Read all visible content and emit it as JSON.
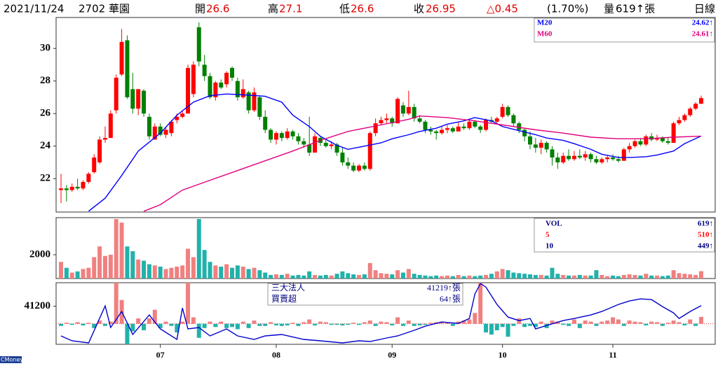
{
  "header": {
    "date": "2021/11/24",
    "stock": "2702 華園",
    "open_label": "開",
    "open": "26.6",
    "high_label": "高",
    "high": "27.1",
    "low_label": "低",
    "low": "26.6",
    "close_label": "收",
    "close": "26.95",
    "change": "△0.45",
    "change_pct": "(1.70%)",
    "volume_label": "量",
    "volume": "619↑張",
    "period": "日線"
  },
  "brand": "CMoney",
  "chart_data": [
    {
      "type": "candlestick",
      "up_color": "#ff0000",
      "down_color": "#008000",
      "ylim": [
        19.95,
        31.9
      ],
      "yticks": [
        22,
        24,
        26,
        28,
        30
      ],
      "xticks": [
        {
          "value": 18,
          "label": "07"
        },
        {
          "value": 39,
          "label": "08"
        },
        {
          "value": 60,
          "label": "09"
        },
        {
          "value": 80,
          "label": "10"
        },
        {
          "value": 100,
          "label": "11"
        }
      ],
      "ohlc": [
        [
          21.3,
          22.3,
          20.5,
          21.4
        ],
        [
          21.4,
          21.6,
          20.6,
          21.3
        ],
        [
          21.3,
          21.7,
          21.2,
          21.5
        ],
        [
          21.5,
          22.0,
          21.3,
          21.4
        ],
        [
          21.4,
          21.9,
          21.3,
          21.8
        ],
        [
          21.8,
          22.4,
          21.7,
          22.3
        ],
        [
          22.4,
          23.5,
          22.3,
          23.3
        ],
        [
          23.0,
          24.6,
          22.9,
          24.4
        ],
        [
          24.4,
          25.2,
          24.2,
          24.5
        ],
        [
          24.5,
          26.2,
          24.5,
          26.0
        ],
        [
          26.2,
          28.4,
          26.0,
          28.2
        ],
        [
          28.4,
          31.2,
          28.3,
          30.4
        ],
        [
          30.5,
          30.8,
          26.9,
          27.0
        ],
        [
          27.5,
          28.5,
          26.0,
          26.3
        ],
        [
          26.3,
          27.5,
          25.9,
          27.5
        ],
        [
          27.4,
          27.5,
          25.8,
          26.0
        ],
        [
          25.8,
          26.0,
          24.4,
          24.6
        ],
        [
          24.4,
          25.4,
          24.4,
          25.2
        ],
        [
          25.2,
          25.4,
          24.6,
          24.7
        ],
        [
          24.7,
          25.2,
          24.5,
          25.0
        ],
        [
          24.8,
          25.6,
          24.6,
          25.5
        ],
        [
          25.6,
          26.0,
          25.4,
          25.8
        ],
        [
          25.8,
          26.2,
          25.7,
          26.0
        ],
        [
          26.0,
          29.0,
          26.0,
          28.8
        ],
        [
          27.2,
          29.2,
          27.0,
          29.0
        ],
        [
          31.3,
          31.6,
          28.9,
          29.2
        ],
        [
          29.0,
          29.6,
          28.0,
          28.3
        ],
        [
          28.3,
          28.5,
          26.9,
          27.0
        ],
        [
          27.0,
          28.0,
          26.8,
          27.9
        ],
        [
          27.9,
          28.1,
          27.5,
          27.6
        ],
        [
          27.8,
          28.6,
          27.6,
          28.5
        ],
        [
          28.8,
          28.9,
          28.0,
          28.2
        ],
        [
          28.0,
          28.2,
          26.8,
          27.0
        ],
        [
          27.0,
          28.1,
          26.9,
          27.5
        ],
        [
          27.3,
          27.4,
          26.0,
          26.2
        ],
        [
          26.2,
          27.6,
          26.1,
          27.3
        ],
        [
          27.0,
          27.1,
          25.6,
          25.8
        ],
        [
          25.8,
          26.2,
          24.8,
          25.0
        ],
        [
          25.0,
          25.1,
          24.2,
          24.4
        ],
        [
          24.4,
          24.9,
          24.1,
          24.8
        ],
        [
          24.8,
          24.9,
          24.3,
          24.5
        ],
        [
          24.5,
          25.1,
          24.4,
          24.9
        ],
        [
          24.9,
          25.0,
          24.4,
          24.6
        ],
        [
          24.6,
          24.8,
          24.1,
          24.3
        ],
        [
          24.3,
          24.5,
          23.9,
          24.1
        ],
        [
          24.1,
          25.8,
          23.4,
          23.6
        ],
        [
          23.6,
          24.8,
          23.6,
          24.6
        ],
        [
          24.5,
          24.6,
          24.0,
          24.2
        ],
        [
          24.2,
          24.4,
          23.9,
          24.0
        ],
        [
          24.0,
          24.3,
          23.8,
          24.1
        ],
        [
          24.1,
          24.2,
          23.4,
          23.6
        ],
        [
          23.6,
          23.9,
          22.8,
          23.0
        ],
        [
          23.0,
          23.3,
          22.6,
          22.8
        ],
        [
          22.8,
          23.0,
          22.4,
          22.5
        ],
        [
          22.5,
          22.9,
          22.4,
          22.8
        ],
        [
          22.8,
          23.0,
          22.5,
          22.6
        ],
        [
          22.6,
          24.9,
          22.5,
          24.8
        ],
        [
          24.8,
          25.7,
          24.6,
          25.4
        ],
        [
          25.4,
          25.8,
          25.3,
          25.6
        ],
        [
          25.6,
          26.0,
          25.4,
          25.7
        ],
        [
          25.7,
          25.8,
          25.2,
          25.4
        ],
        [
          25.4,
          27.0,
          25.4,
          26.9
        ],
        [
          26.5,
          26.7,
          25.8,
          26.0
        ],
        [
          26.0,
          27.4,
          25.9,
          26.4
        ],
        [
          26.4,
          26.6,
          25.5,
          25.7
        ],
        [
          25.7,
          25.9,
          25.4,
          25.5
        ],
        [
          25.5,
          25.6,
          24.8,
          25.0
        ],
        [
          25.0,
          25.2,
          24.7,
          24.9
        ],
        [
          24.9,
          25.0,
          24.4,
          24.8
        ],
        [
          24.8,
          25.2,
          24.7,
          25.0
        ],
        [
          25.0,
          25.3,
          24.8,
          25.1
        ],
        [
          25.1,
          25.2,
          24.8,
          24.9
        ],
        [
          24.9,
          25.5,
          24.9,
          25.2
        ],
        [
          25.2,
          25.4,
          25.0,
          25.1
        ],
        [
          25.1,
          25.6,
          25.0,
          25.5
        ],
        [
          25.5,
          25.6,
          25.1,
          25.2
        ],
        [
          25.2,
          25.3,
          24.8,
          25.0
        ],
        [
          25.0,
          25.7,
          24.9,
          25.6
        ],
        [
          25.6,
          25.8,
          25.4,
          25.5
        ],
        [
          25.5,
          25.8,
          25.4,
          25.7
        ],
        [
          25.8,
          26.6,
          25.7,
          26.4
        ],
        [
          26.4,
          26.5,
          25.8,
          25.9
        ],
        [
          25.9,
          26.0,
          25.2,
          25.4
        ],
        [
          25.4,
          25.5,
          24.8,
          25.0
        ],
        [
          25.0,
          25.1,
          24.3,
          24.6
        ],
        [
          24.6,
          24.9,
          23.8,
          24.1
        ],
        [
          24.1,
          24.5,
          23.6,
          23.9
        ],
        [
          23.9,
          24.4,
          23.5,
          24.2
        ],
        [
          24.2,
          24.3,
          23.6,
          23.8
        ],
        [
          23.8,
          24.0,
          22.8,
          23.3
        ],
        [
          23.3,
          23.6,
          22.6,
          23.0
        ],
        [
          23.0,
          23.6,
          22.9,
          23.4
        ],
        [
          23.4,
          23.8,
          23.1,
          23.2
        ],
        [
          23.2,
          23.7,
          23.1,
          23.4
        ],
        [
          23.4,
          23.8,
          23.2,
          23.3
        ],
        [
          23.3,
          23.7,
          23.1,
          23.5
        ],
        [
          23.5,
          23.6,
          23.0,
          23.2
        ],
        [
          23.2,
          23.4,
          22.9,
          23.0
        ],
        [
          23.0,
          23.3,
          22.9,
          23.2
        ],
        [
          23.2,
          23.4,
          23.0,
          23.3
        ],
        [
          23.3,
          23.5,
          23.1,
          23.2
        ],
        [
          23.2,
          23.4,
          23.0,
          23.1
        ],
        [
          23.1,
          23.9,
          23.1,
          23.8
        ],
        [
          23.8,
          24.2,
          23.6,
          24.0
        ],
        [
          24.0,
          24.4,
          23.9,
          24.3
        ],
        [
          24.3,
          24.5,
          24.0,
          24.1
        ],
        [
          24.1,
          24.7,
          24.0,
          24.6
        ],
        [
          24.6,
          24.8,
          24.3,
          24.4
        ],
        [
          24.4,
          24.7,
          24.3,
          24.5
        ],
        [
          24.5,
          24.6,
          24.2,
          24.3
        ],
        [
          24.3,
          24.5,
          24.1,
          24.2
        ],
        [
          24.2,
          25.5,
          24.2,
          25.4
        ],
        [
          25.4,
          25.8,
          25.3,
          25.6
        ],
        [
          25.6,
          26.0,
          25.5,
          25.9
        ],
        [
          25.9,
          26.4,
          25.8,
          26.3
        ],
        [
          26.3,
          26.7,
          26.2,
          26.6
        ],
        [
          26.6,
          27.1,
          26.6,
          26.95
        ]
      ],
      "series": [
        {
          "name": "M20",
          "color": "#0000ff",
          "legend_label": "24.62↑",
          "x": [
            5,
            8,
            11,
            14,
            18,
            21,
            24,
            27,
            30,
            33,
            37,
            40,
            42,
            45,
            47,
            50,
            52,
            55,
            58,
            60,
            63,
            65,
            68,
            70,
            73,
            75,
            78,
            80,
            83,
            86,
            88,
            91,
            93,
            96,
            98,
            101,
            103,
            106,
            108,
            111,
            113,
            116
          ],
          "values": [
            20.0,
            20.8,
            22.2,
            23.7,
            24.8,
            25.9,
            26.7,
            27.1,
            27.2,
            27.15,
            27.06,
            26.7,
            25.9,
            25.2,
            24.6,
            24.05,
            23.8,
            24.0,
            24.2,
            24.45,
            24.7,
            24.9,
            25.1,
            25.35,
            25.55,
            25.75,
            25.55,
            25.2,
            24.95,
            24.7,
            24.5,
            24.35,
            24.15,
            23.8,
            23.5,
            23.3,
            23.3,
            23.35,
            23.45,
            23.7,
            24.15,
            24.62
          ]
        },
        {
          "name": "M60",
          "color": "#e0007f",
          "legend_label": "24.61↑",
          "x": [
            15,
            18,
            22,
            27,
            32,
            37,
            42,
            47,
            52,
            58,
            63,
            65,
            70,
            75,
            80,
            86,
            91,
            96,
            101,
            106,
            111,
            116
          ],
          "values": [
            20.0,
            20.4,
            21.3,
            21.9,
            22.5,
            23.1,
            23.7,
            24.35,
            24.9,
            25.3,
            25.65,
            25.85,
            25.75,
            25.55,
            25.3,
            25.0,
            24.8,
            24.55,
            24.45,
            24.45,
            24.55,
            24.61
          ]
        }
      ]
    },
    {
      "type": "bar",
      "up_color": "#f08080",
      "down_color": "#20b2aa",
      "ylim": [
        0,
        5060
      ],
      "yticks": [
        2000
      ],
      "legend": [
        {
          "name": "VOL",
          "label": "619↑",
          "color": "#000080"
        },
        {
          "name": "5",
          "label": "510↑",
          "color": "#ff0000"
        },
        {
          "name": "10",
          "label": "449↑",
          "color": "#000080"
        }
      ],
      "values": [
        1400,
        900,
        500,
        600,
        800,
        900,
        1800,
        2700,
        1900,
        2000,
        5000,
        4700,
        2700,
        2300,
        1600,
        1500,
        1200,
        1100,
        1000,
        800,
        900,
        1000,
        1100,
        2500,
        1800,
        5000,
        2400,
        1400,
        1100,
        1000,
        1200,
        900,
        1100,
        1000,
        800,
        900,
        700,
        500,
        300,
        350,
        300,
        400,
        250,
        300,
        250,
        600,
        300,
        250,
        300,
        250,
        400,
        600,
        450,
        350,
        300,
        350,
        1300,
        700,
        450,
        400,
        350,
        700,
        500,
        800,
        400,
        300,
        250,
        200,
        250,
        200,
        250,
        200,
        300,
        200,
        250,
        200,
        250,
        300,
        400,
        600,
        800,
        700,
        500,
        450,
        400,
        350,
        300,
        300,
        250,
        900,
        400,
        300,
        250,
        250,
        300,
        250,
        250,
        700,
        300,
        200,
        250,
        200,
        300,
        350,
        300,
        250,
        400,
        250,
        250,
        200,
        250,
        700,
        450,
        400,
        350,
        300,
        619
      ]
    },
    {
      "type": "bar",
      "up_color": "#f08080",
      "down_color": "#20b2aa",
      "ylim": [
        -190,
        380
      ],
      "y2lim": [
        40000,
        41940
      ],
      "y2ticks": [
        41200
      ],
      "legend": [
        {
          "name": "三大法人",
          "label": "41219↑張"
        },
        {
          "name": "買賣超",
          "label": "64↑張"
        }
      ],
      "values": [
        -20,
        10,
        -10,
        15,
        -15,
        10,
        -40,
        30,
        -20,
        20,
        380,
        220,
        -190,
        -70,
        50,
        -60,
        50,
        130,
        -40,
        20,
        -20,
        -80,
        20,
        380,
        60,
        -130,
        -40,
        20,
        -30,
        20,
        -40,
        -30,
        -50,
        20,
        -40,
        30,
        -20,
        -20,
        15,
        -15,
        -20,
        -15,
        10,
        -20,
        15,
        40,
        -15,
        20,
        15,
        -10,
        -10,
        -15,
        -10,
        10,
        -10,
        15,
        30,
        -20,
        20,
        15,
        -15,
        60,
        -20,
        30,
        -20,
        -15,
        -10,
        10,
        15,
        20,
        10,
        -20,
        20,
        30,
        40,
        100,
        380,
        -80,
        -100,
        -60,
        -30,
        -120,
        -20,
        50,
        -30,
        -20,
        -30,
        20,
        -40,
        30,
        20,
        -10,
        -20,
        40,
        -40,
        30,
        20,
        -20,
        20,
        30,
        60,
        40,
        -20,
        30,
        20,
        15,
        -15,
        20,
        15,
        -20,
        10,
        30,
        15,
        -15,
        40,
        -20,
        64
      ],
      "series": [
        {
          "name": "三大法人",
          "axis": "y2",
          "color": "#0000cc",
          "x": [
            0,
            2,
            5,
            8,
            9,
            11,
            13,
            16,
            18,
            21,
            22,
            23,
            25,
            27,
            30,
            32,
            35,
            37,
            40,
            44,
            47,
            51,
            54,
            56,
            59,
            61,
            64,
            66,
            69,
            72,
            74,
            75,
            76,
            77,
            79,
            81,
            83,
            85,
            86,
            88,
            91,
            93,
            96,
            98,
            101,
            103,
            105,
            107,
            109,
            111,
            112,
            114,
            116
          ],
          "values": [
            40264,
            40110,
            40044,
            41210,
            40528,
            41034,
            40308,
            40924,
            40484,
            40154,
            41144,
            40484,
            40528,
            40264,
            40484,
            40264,
            40154,
            40264,
            40308,
            40154,
            40110,
            40044,
            40110,
            40088,
            40198,
            40264,
            40440,
            40572,
            40704,
            40660,
            40814,
            41584,
            41914,
            41804,
            41254,
            40858,
            40748,
            40814,
            40484,
            40594,
            40748,
            40814,
            40924,
            41034,
            41254,
            41364,
            41430,
            41408,
            41188,
            40990,
            40814,
            41034,
            41219
          ]
        }
      ]
    }
  ]
}
